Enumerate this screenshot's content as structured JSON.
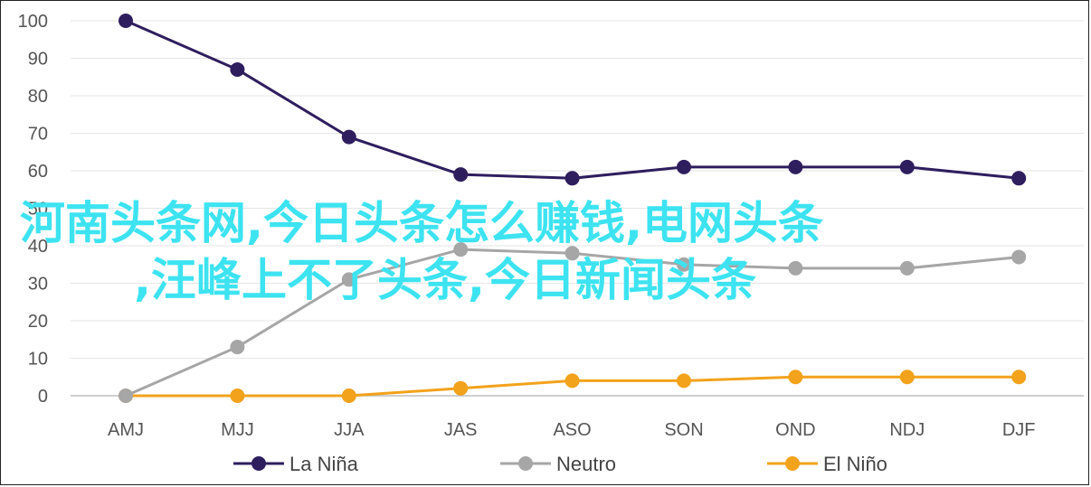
{
  "chart_data": {
    "type": "line",
    "categories": [
      "AMJ",
      "MJJ",
      "JJA",
      "JAS",
      "ASO",
      "SON",
      "OND",
      "NDJ",
      "DJF"
    ],
    "series": [
      {
        "name": "La Niña",
        "color": "#2e1e5e",
        "values": [
          100,
          87,
          69,
          59,
          58,
          61,
          61,
          61,
          58
        ]
      },
      {
        "name": "Neutro",
        "color": "#a6a6a6",
        "values": [
          0,
          13,
          31,
          39,
          38,
          35,
          34,
          34,
          37
        ]
      },
      {
        "name": "El Niño",
        "color": "#f2a21b",
        "values": [
          0,
          0,
          0,
          2,
          4,
          4,
          5,
          5,
          5
        ]
      }
    ],
    "yticks": [
      0,
      10,
      20,
      30,
      40,
      50,
      60,
      70,
      80,
      90,
      100
    ],
    "ylim": [
      0,
      100
    ],
    "grid": true,
    "legend_position": "bottom"
  },
  "overlay": {
    "line1": "河南头条网,今日头条怎么赚钱,电网头条",
    "line2": ",汪峰上不了头条,今日新闻头条",
    "color": "#3de3f0"
  }
}
